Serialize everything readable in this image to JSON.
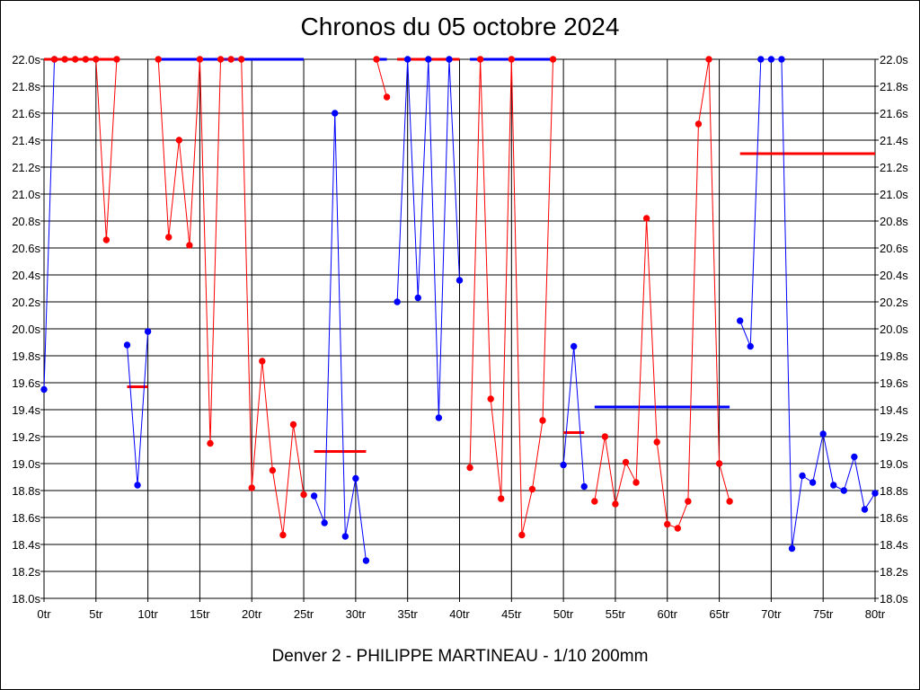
{
  "chart_data": {
    "type": "line",
    "title": "Chronos du 05 octobre 2024",
    "footer": "Denver 2 - PHILIPPE MARTINEAU - 1/10 200mm",
    "xlim": [
      0,
      80
    ],
    "ylim": [
      18.0,
      22.0
    ],
    "x_ticks": [
      0,
      5,
      10,
      15,
      20,
      25,
      30,
      35,
      40,
      45,
      50,
      55,
      60,
      65,
      70,
      75,
      80
    ],
    "x_tick_labels": [
      "0tr",
      "5tr",
      "10tr",
      "15tr",
      "20tr",
      "25tr",
      "30tr",
      "35tr",
      "40tr",
      "45tr",
      "50tr",
      "55tr",
      "60tr",
      "65tr",
      "70tr",
      "75tr",
      "80tr"
    ],
    "y_ticks": [
      18.0,
      18.2,
      18.4,
      18.6,
      18.8,
      19.0,
      19.2,
      19.4,
      19.6,
      19.8,
      20.0,
      20.2,
      20.4,
      20.6,
      20.8,
      21.0,
      21.2,
      21.4,
      21.6,
      21.8,
      22.0
    ],
    "y_tick_labels": [
      "18.0s",
      "18.2s",
      "18.4s",
      "18.6s",
      "18.8s",
      "19.0s",
      "19.2s",
      "19.4s",
      "19.6s",
      "19.8s",
      "20.0s",
      "20.2s",
      "20.4s",
      "20.6s",
      "20.8s",
      "21.0s",
      "21.2s",
      "21.4s",
      "21.6s",
      "21.8s",
      "22.0s"
    ],
    "grid": true,
    "colors": {
      "blue": "#0000ff",
      "red": "#ff0000"
    },
    "segments": [
      {
        "color": "blue",
        "points": [
          [
            0,
            19.55
          ],
          [
            1,
            22.0
          ]
        ]
      },
      {
        "color": "red",
        "points": [
          [
            1,
            22.0
          ],
          [
            2,
            22.0
          ],
          [
            3,
            22.0
          ],
          [
            4,
            22.0
          ],
          [
            5,
            22.0
          ],
          [
            6,
            20.66
          ],
          [
            7,
            22.0
          ]
        ]
      },
      {
        "color": "blue",
        "points": [
          [
            8,
            19.88
          ],
          [
            9,
            18.84
          ],
          [
            10,
            19.98
          ]
        ]
      },
      {
        "color": "red",
        "points": [
          [
            11,
            22.0
          ],
          [
            12,
            20.68
          ],
          [
            13,
            21.4
          ],
          [
            14,
            20.62
          ],
          [
            15,
            22.0
          ],
          [
            16,
            19.15
          ],
          [
            17,
            22.0
          ],
          [
            18,
            22.0
          ],
          [
            19,
            22.0
          ],
          [
            20,
            18.82
          ],
          [
            21,
            19.76
          ],
          [
            22,
            18.95
          ],
          [
            23,
            18.47
          ],
          [
            24,
            19.29
          ],
          [
            25,
            18.77
          ]
        ]
      },
      {
        "color": "blue",
        "points": [
          [
            26,
            18.76
          ],
          [
            27,
            18.56
          ],
          [
            28,
            21.6
          ],
          [
            29,
            18.46
          ],
          [
            30,
            18.89
          ],
          [
            31,
            18.28
          ]
        ]
      },
      {
        "color": "red",
        "points": [
          [
            32,
            22.0
          ],
          [
            33,
            21.72
          ]
        ]
      },
      {
        "color": "blue",
        "points": [
          [
            34,
            20.2
          ],
          [
            35,
            22.0
          ],
          [
            36,
            20.23
          ],
          [
            37,
            22.0
          ],
          [
            38,
            19.34
          ],
          [
            39,
            22.0
          ],
          [
            40,
            20.36
          ]
        ]
      },
      {
        "color": "red",
        "points": [
          [
            41,
            18.97
          ],
          [
            42,
            22.0
          ],
          [
            43,
            19.48
          ],
          [
            44,
            18.74
          ],
          [
            45,
            22.0
          ],
          [
            46,
            18.47
          ],
          [
            47,
            18.81
          ],
          [
            48,
            19.32
          ],
          [
            49,
            22.0
          ]
        ]
      },
      {
        "color": "blue",
        "points": [
          [
            50,
            18.99
          ],
          [
            51,
            19.87
          ],
          [
            52,
            18.83
          ]
        ]
      },
      {
        "color": "red",
        "points": [
          [
            53,
            18.72
          ],
          [
            54,
            19.2
          ],
          [
            55,
            18.7
          ],
          [
            56,
            19.01
          ],
          [
            57,
            18.86
          ],
          [
            58,
            20.82
          ],
          [
            59,
            19.16
          ],
          [
            60,
            18.55
          ],
          [
            61,
            18.52
          ],
          [
            62,
            18.72
          ],
          [
            63,
            21.52
          ],
          [
            64,
            22.0
          ],
          [
            65,
            19.0
          ],
          [
            66,
            18.72
          ]
        ]
      },
      {
        "color": "blue",
        "points": [
          [
            67,
            20.06
          ],
          [
            68,
            19.87
          ],
          [
            69,
            22.0
          ],
          [
            70,
            22.0
          ],
          [
            71,
            22.0
          ],
          [
            72,
            18.37
          ],
          [
            73,
            18.91
          ],
          [
            74,
            18.86
          ],
          [
            75,
            19.22
          ],
          [
            76,
            18.84
          ],
          [
            77,
            18.8
          ],
          [
            78,
            19.05
          ],
          [
            79,
            18.66
          ],
          [
            80,
            18.78
          ]
        ]
      }
    ],
    "horizontal_lines": [
      {
        "color": "red",
        "x": [
          0,
          7
        ],
        "y": 22.0
      },
      {
        "color": "blue",
        "x": [
          11,
          25
        ],
        "y": 22.0
      },
      {
        "color": "red",
        "x": [
          8,
          10
        ],
        "y": 19.57
      },
      {
        "color": "red",
        "x": [
          26,
          31
        ],
        "y": 19.09
      },
      {
        "color": "blue",
        "x": [
          32,
          33
        ],
        "y": 22.0
      },
      {
        "color": "red",
        "x": [
          34,
          40
        ],
        "y": 22.0
      },
      {
        "color": "blue",
        "x": [
          41,
          49
        ],
        "y": 22.0
      },
      {
        "color": "red",
        "x": [
          50,
          52
        ],
        "y": 19.23
      },
      {
        "color": "blue",
        "x": [
          53,
          66
        ],
        "y": 19.42
      },
      {
        "color": "red",
        "x": [
          67,
          80
        ],
        "y": 21.3
      }
    ]
  }
}
